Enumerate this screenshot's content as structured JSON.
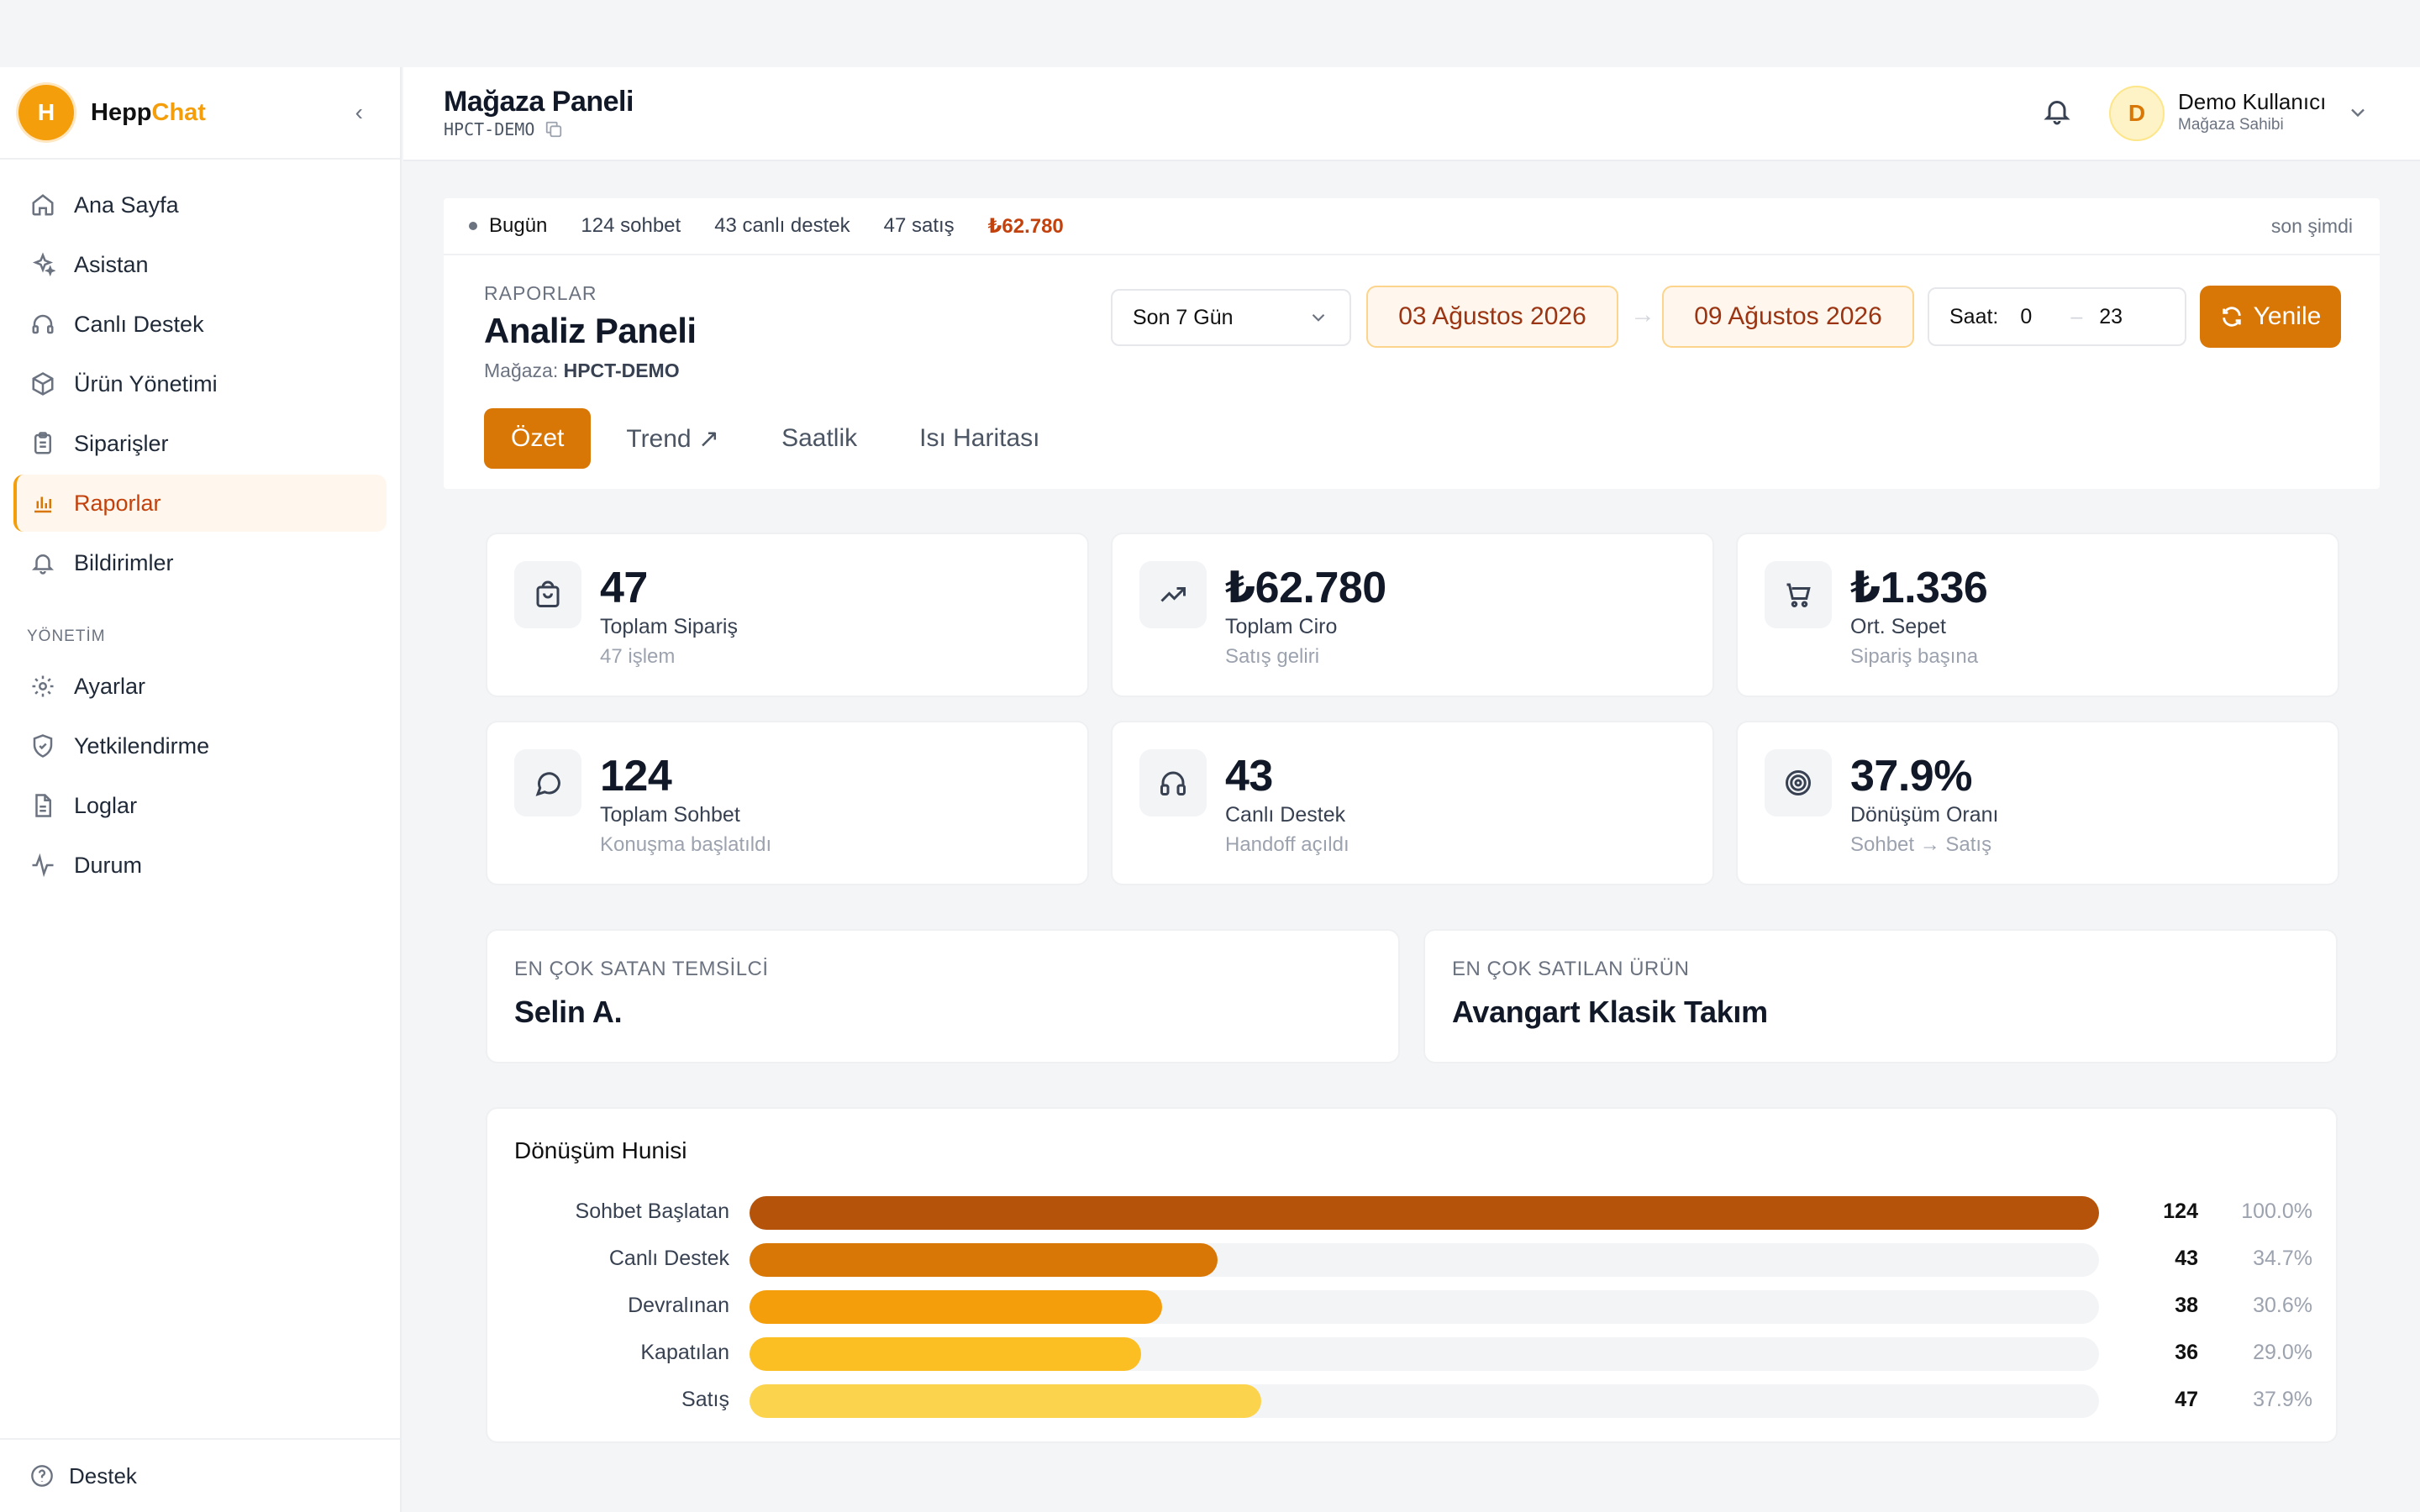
{
  "brand": {
    "name_part1": "Hepp",
    "name_part2": "Chat",
    "logo_letter": "H"
  },
  "sidebar": {
    "items": [
      {
        "label": "Ana Sayfa",
        "icon": "home-icon"
      },
      {
        "label": "Asistan",
        "icon": "sparkles-icon"
      },
      {
        "label": "Canlı Destek",
        "icon": "headset-icon"
      },
      {
        "label": "Ürün Yönetimi",
        "icon": "box-icon"
      },
      {
        "label": "Siparişler",
        "icon": "clipboard-icon"
      },
      {
        "label": "Raporlar",
        "icon": "bar-chart-icon",
        "active": true
      },
      {
        "label": "Bildirimler",
        "icon": "bell-icon"
      }
    ],
    "section_title": "YÖNETİM",
    "admin_items": [
      {
        "label": "Ayarlar",
        "icon": "gear-icon"
      },
      {
        "label": "Yetkilendirme",
        "icon": "shield-icon"
      },
      {
        "label": "Loglar",
        "icon": "file-icon"
      },
      {
        "label": "Durum",
        "icon": "activity-icon"
      }
    ],
    "footer_label": "Destek"
  },
  "header": {
    "title": "Mağaza Paneli",
    "store_code": "HPCT-DEMO",
    "user_initial": "D",
    "user_name": "Demo Kullanıcı",
    "user_role": "Mağaza Sahibi"
  },
  "today_bar": {
    "label": "Bugün",
    "chats": "124 sohbet",
    "live": "43 canlı destek",
    "sales": "47 satış",
    "revenue": "₺62.780",
    "updated": "son şimdi"
  },
  "report": {
    "eyebrow": "RAPORLAR",
    "title": "Analiz Paneli",
    "store_label": "Mağaza: ",
    "store_code": "HPCT-DEMO",
    "range_select": "Son 7 Gün",
    "date_from": "03 Ağustos 2026",
    "date_to": "09 Ağustos 2026",
    "hour_label": "Saat:",
    "hour_from": "0",
    "hour_to": "23",
    "refresh_label": "Yenile",
    "tabs": [
      "Özet",
      "Trend ↗",
      "Saatlik",
      "Isı Haritası"
    ]
  },
  "kpis": [
    {
      "value": "47",
      "label": "Toplam Sipariş",
      "sub": "47 işlem",
      "icon": "shopping-bag-icon"
    },
    {
      "value": "₺62.780",
      "label": "Toplam Ciro",
      "sub": "Satış geliri",
      "icon": "trending-up-icon"
    },
    {
      "value": "₺1.336",
      "label": "Ort. Sepet",
      "sub": "Sipariş başına",
      "icon": "cart-icon"
    },
    {
      "value": "124",
      "label": "Toplam Sohbet",
      "sub": "Konuşma başlatıldı",
      "icon": "chat-bubble-icon"
    },
    {
      "value": "43",
      "label": "Canlı Destek",
      "sub": "Handoff açıldı",
      "icon": "headphones-icon"
    },
    {
      "value": "37.9%",
      "label": "Dönüşüm Oranı",
      "sub": "Sohbet → Satış",
      "icon": "target-icon"
    }
  ],
  "top_cards": {
    "rep_caption": "EN ÇOK SATAN TEMSİLCİ",
    "rep_name": "Selin A.",
    "product_caption": "EN ÇOK SATILAN ÜRÜN",
    "product_name": "Avangart Klasik Takım"
  },
  "funnel": {
    "title": "Dönüşüm Hunisi",
    "rows": [
      {
        "label": "Sohbet Başlatan",
        "count": "124",
        "pct": "100.0%",
        "fraction": 1.0,
        "color": "#b45309"
      },
      {
        "label": "Canlı Destek",
        "count": "43",
        "pct": "34.7%",
        "fraction": 0.347,
        "color": "#d97706"
      },
      {
        "label": "Devralınan",
        "count": "38",
        "pct": "30.6%",
        "fraction": 0.306,
        "color": "#f59e0b"
      },
      {
        "label": "Kapatılan",
        "count": "36",
        "pct": "29.0%",
        "fraction": 0.29,
        "color": "#fbbf24"
      },
      {
        "label": "Satış",
        "count": "47",
        "pct": "37.9%",
        "fraction": 0.379,
        "color": "#fcd34d"
      }
    ]
  },
  "colors": {
    "accent": "#d97706",
    "brand": "#f59e0b",
    "active_bg": "#fff7ed"
  }
}
